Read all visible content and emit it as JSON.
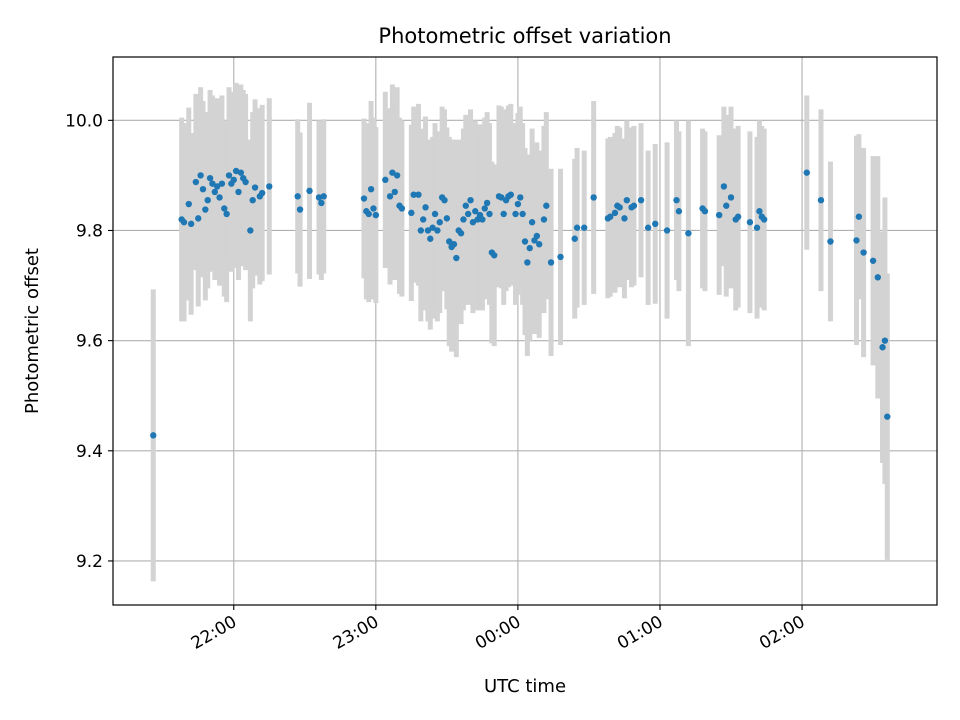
{
  "chart_data": {
    "type": "scatter",
    "title": "Photometric offset variation",
    "xlabel": "UTC time",
    "ylabel": "Photometric offset",
    "xlim": [
      "21:09",
      "02:57"
    ],
    "ylim": [
      9.12,
      10.115
    ],
    "x_ticks": [
      "22:00",
      "23:00",
      "00:00",
      "01:00",
      "02:00"
    ],
    "y_ticks": [
      "9.2",
      "9.4",
      "9.6",
      "9.8",
      "10.0"
    ],
    "grid": true,
    "colors": {
      "point": "#1f77b4",
      "errorbar": "#d3d3d3",
      "grid": "#b0b0b0"
    },
    "series": [
      {
        "points": [
          {
            "t": "21:26",
            "y": 9.428,
            "err": 0.265
          },
          {
            "t": "21:38",
            "y": 9.82,
            "err": 0.185
          },
          {
            "t": "21:39",
            "y": 9.815,
            "err": 0.18
          },
          {
            "t": "21:41",
            "y": 9.848,
            "err": 0.175
          },
          {
            "t": "21:42",
            "y": 9.812,
            "err": 0.165
          },
          {
            "t": "21:44",
            "y": 9.888,
            "err": 0.16
          },
          {
            "t": "21:45",
            "y": 9.822,
            "err": 0.16
          },
          {
            "t": "21:46",
            "y": 9.9,
            "err": 0.16
          },
          {
            "t": "21:47",
            "y": 9.875,
            "err": 0.16
          },
          {
            "t": "21:48",
            "y": 9.838,
            "err": 0.165
          },
          {
            "t": "21:49",
            "y": 9.855,
            "err": 0.16
          },
          {
            "t": "21:50",
            "y": 9.895,
            "err": 0.16
          },
          {
            "t": "21:51",
            "y": 9.885,
            "err": 0.16
          },
          {
            "t": "21:52",
            "y": 9.87,
            "err": 0.16
          },
          {
            "t": "21:53",
            "y": 9.88,
            "err": 0.16
          },
          {
            "t": "21:54",
            "y": 9.86,
            "err": 0.16
          },
          {
            "t": "21:55",
            "y": 9.885,
            "err": 0.16
          },
          {
            "t": "21:56",
            "y": 9.84,
            "err": 0.16
          },
          {
            "t": "21:57",
            "y": 9.83,
            "err": 0.16
          },
          {
            "t": "21:58",
            "y": 9.9,
            "err": 0.16
          },
          {
            "t": "21:59",
            "y": 9.885,
            "err": 0.16
          },
          {
            "t": "22:00",
            "y": 9.892,
            "err": 0.16
          },
          {
            "t": "22:01",
            "y": 9.908,
            "err": 0.16
          },
          {
            "t": "22:02",
            "y": 9.87,
            "err": 0.16
          },
          {
            "t": "22:03",
            "y": 9.905,
            "err": 0.16
          },
          {
            "t": "22:04",
            "y": 9.895,
            "err": 0.16
          },
          {
            "t": "22:05",
            "y": 9.888,
            "err": 0.16
          },
          {
            "t": "22:07",
            "y": 9.8,
            "err": 0.165
          },
          {
            "t": "22:08",
            "y": 9.855,
            "err": 0.16
          },
          {
            "t": "22:09",
            "y": 9.878,
            "err": 0.16
          },
          {
            "t": "22:11",
            "y": 9.862,
            "err": 0.16
          },
          {
            "t": "22:12",
            "y": 9.868,
            "err": 0.16
          },
          {
            "t": "22:15",
            "y": 9.88,
            "err": 0.16
          },
          {
            "t": "22:27",
            "y": 9.862,
            "err": 0.14
          },
          {
            "t": "22:28",
            "y": 9.838,
            "err": 0.14
          },
          {
            "t": "22:32",
            "y": 9.872,
            "err": 0.16
          },
          {
            "t": "22:36",
            "y": 9.86,
            "err": 0.14
          },
          {
            "t": "22:37",
            "y": 9.85,
            "err": 0.14
          },
          {
            "t": "22:38",
            "y": 9.862,
            "err": 0.14
          },
          {
            "t": "22:55",
            "y": 9.858,
            "err": 0.145
          },
          {
            "t": "22:56",
            "y": 9.835,
            "err": 0.16
          },
          {
            "t": "22:57",
            "y": 9.83,
            "err": 0.16
          },
          {
            "t": "22:58",
            "y": 9.875,
            "err": 0.16
          },
          {
            "t": "22:59",
            "y": 9.84,
            "err": 0.165
          },
          {
            "t": "23:00",
            "y": 9.828,
            "err": 0.16
          },
          {
            "t": "23:04",
            "y": 9.892,
            "err": 0.16
          },
          {
            "t": "23:06",
            "y": 9.862,
            "err": 0.16
          },
          {
            "t": "23:07",
            "y": 9.905,
            "err": 0.16
          },
          {
            "t": "23:08",
            "y": 9.87,
            "err": 0.16
          },
          {
            "t": "23:09",
            "y": 9.9,
            "err": 0.16
          },
          {
            "t": "23:10",
            "y": 9.845,
            "err": 0.16
          },
          {
            "t": "23:11",
            "y": 9.84,
            "err": 0.16
          },
          {
            "t": "23:15",
            "y": 9.832,
            "err": 0.16
          },
          {
            "t": "23:16",
            "y": 9.865,
            "err": 0.16
          },
          {
            "t": "23:18",
            "y": 9.865,
            "err": 0.165
          },
          {
            "t": "23:19",
            "y": 9.8,
            "err": 0.165
          },
          {
            "t": "23:20",
            "y": 9.82,
            "err": 0.165
          },
          {
            "t": "23:21",
            "y": 9.842,
            "err": 0.165
          },
          {
            "t": "23:22",
            "y": 9.8,
            "err": 0.165
          },
          {
            "t": "23:23",
            "y": 9.785,
            "err": 0.165
          },
          {
            "t": "23:24",
            "y": 9.805,
            "err": 0.165
          },
          {
            "t": "23:25",
            "y": 9.83,
            "err": 0.165
          },
          {
            "t": "23:26",
            "y": 9.8,
            "err": 0.165
          },
          {
            "t": "23:27",
            "y": 9.815,
            "err": 0.165
          },
          {
            "t": "23:28",
            "y": 9.86,
            "err": 0.165
          },
          {
            "t": "23:29",
            "y": 9.855,
            "err": 0.165
          },
          {
            "t": "23:30",
            "y": 9.822,
            "err": 0.165
          },
          {
            "t": "23:31",
            "y": 9.78,
            "err": 0.19
          },
          {
            "t": "23:32",
            "y": 9.77,
            "err": 0.19
          },
          {
            "t": "23:33",
            "y": 9.775,
            "err": 0.19
          },
          {
            "t": "23:34",
            "y": 9.75,
            "err": 0.18
          },
          {
            "t": "23:35",
            "y": 9.8,
            "err": 0.165
          },
          {
            "t": "23:36",
            "y": 9.795,
            "err": 0.165
          },
          {
            "t": "23:37",
            "y": 9.82,
            "err": 0.165
          },
          {
            "t": "23:38",
            "y": 9.845,
            "err": 0.165
          },
          {
            "t": "23:39",
            "y": 9.83,
            "err": 0.165
          },
          {
            "t": "23:40",
            "y": 9.855,
            "err": 0.165
          },
          {
            "t": "23:41",
            "y": 9.815,
            "err": 0.165
          },
          {
            "t": "23:42",
            "y": 9.835,
            "err": 0.165
          },
          {
            "t": "23:43",
            "y": 9.82,
            "err": 0.165
          },
          {
            "t": "23:44",
            "y": 9.828,
            "err": 0.165
          },
          {
            "t": "23:45",
            "y": 9.82,
            "err": 0.165
          },
          {
            "t": "23:46",
            "y": 9.84,
            "err": 0.165
          },
          {
            "t": "23:47",
            "y": 9.85,
            "err": 0.165
          },
          {
            "t": "23:48",
            "y": 9.83,
            "err": 0.165
          },
          {
            "t": "23:49",
            "y": 9.76,
            "err": 0.165
          },
          {
            "t": "23:50",
            "y": 9.755,
            "err": 0.165
          },
          {
            "t": "23:52",
            "y": 9.862,
            "err": 0.165
          },
          {
            "t": "23:53",
            "y": 9.86,
            "err": 0.165
          },
          {
            "t": "23:54",
            "y": 9.83,
            "err": 0.165
          },
          {
            "t": "23:55",
            "y": 9.855,
            "err": 0.165
          },
          {
            "t": "23:56",
            "y": 9.862,
            "err": 0.165
          },
          {
            "t": "23:57",
            "y": 9.865,
            "err": 0.165
          },
          {
            "t": "23:59",
            "y": 9.83,
            "err": 0.165
          },
          {
            "t": "00:00",
            "y": 9.848,
            "err": 0.165
          },
          {
            "t": "00:01",
            "y": 9.86,
            "err": 0.165
          },
          {
            "t": "00:02",
            "y": 9.83,
            "err": 0.165
          },
          {
            "t": "00:03",
            "y": 9.78,
            "err": 0.17
          },
          {
            "t": "00:04",
            "y": 9.742,
            "err": 0.17
          },
          {
            "t": "00:05",
            "y": 9.768,
            "err": 0.17
          },
          {
            "t": "00:06",
            "y": 9.815,
            "err": 0.17
          },
          {
            "t": "00:07",
            "y": 9.782,
            "err": 0.17
          },
          {
            "t": "00:08",
            "y": 9.79,
            "err": 0.17
          },
          {
            "t": "00:09",
            "y": 9.775,
            "err": 0.17
          },
          {
            "t": "00:11",
            "y": 9.82,
            "err": 0.17
          },
          {
            "t": "00:12",
            "y": 9.845,
            "err": 0.17
          },
          {
            "t": "00:14",
            "y": 9.742,
            "err": 0.17
          },
          {
            "t": "00:18",
            "y": 9.752,
            "err": 0.16
          },
          {
            "t": "00:24",
            "y": 9.785,
            "err": 0.145
          },
          {
            "t": "00:25",
            "y": 9.805,
            "err": 0.145
          },
          {
            "t": "00:28",
            "y": 9.805,
            "err": 0.14
          },
          {
            "t": "00:32",
            "y": 9.86,
            "err": 0.175
          },
          {
            "t": "00:38",
            "y": 9.822,
            "err": 0.145
          },
          {
            "t": "00:39",
            "y": 9.825,
            "err": 0.145
          },
          {
            "t": "00:41",
            "y": 9.832,
            "err": 0.145
          },
          {
            "t": "00:42",
            "y": 9.845,
            "err": 0.145
          },
          {
            "t": "00:43",
            "y": 9.842,
            "err": 0.145
          },
          {
            "t": "00:45",
            "y": 9.822,
            "err": 0.145
          },
          {
            "t": "00:46",
            "y": 9.855,
            "err": 0.145
          },
          {
            "t": "00:48",
            "y": 9.842,
            "err": 0.145
          },
          {
            "t": "00:49",
            "y": 9.845,
            "err": 0.145
          },
          {
            "t": "00:52",
            "y": 9.855,
            "err": 0.14
          },
          {
            "t": "00:55",
            "y": 9.805,
            "err": 0.14
          },
          {
            "t": "00:58",
            "y": 9.812,
            "err": 0.145
          },
          {
            "t": "01:03",
            "y": 9.8,
            "err": 0.16
          },
          {
            "t": "01:07",
            "y": 9.855,
            "err": 0.145
          },
          {
            "t": "01:08",
            "y": 9.835,
            "err": 0.145
          },
          {
            "t": "01:12",
            "y": 9.795,
            "err": 0.205
          },
          {
            "t": "01:18",
            "y": 9.84,
            "err": 0.145
          },
          {
            "t": "01:19",
            "y": 9.835,
            "err": 0.145
          },
          {
            "t": "01:25",
            "y": 9.828,
            "err": 0.145
          },
          {
            "t": "01:27",
            "y": 9.88,
            "err": 0.145
          },
          {
            "t": "01:28",
            "y": 9.845,
            "err": 0.165
          },
          {
            "t": "01:30",
            "y": 9.86,
            "err": 0.165
          },
          {
            "t": "01:32",
            "y": 9.82,
            "err": 0.165
          },
          {
            "t": "01:33",
            "y": 9.825,
            "err": 0.165
          },
          {
            "t": "01:38",
            "y": 9.815,
            "err": 0.165
          },
          {
            "t": "01:41",
            "y": 9.805,
            "err": 0.165
          },
          {
            "t": "01:42",
            "y": 9.835,
            "err": 0.165
          },
          {
            "t": "01:43",
            "y": 9.825,
            "err": 0.165
          },
          {
            "t": "01:44",
            "y": 9.82,
            "err": 0.165
          },
          {
            "t": "02:02",
            "y": 9.905,
            "err": 0.14
          },
          {
            "t": "02:08",
            "y": 9.855,
            "err": 0.165
          },
          {
            "t": "02:12",
            "y": 9.78,
            "err": 0.145
          },
          {
            "t": "02:23",
            "y": 9.782,
            "err": 0.19
          },
          {
            "t": "02:24",
            "y": 9.825,
            "err": 0.15
          },
          {
            "t": "02:26",
            "y": 9.76,
            "err": 0.19
          },
          {
            "t": "02:30",
            "y": 9.745,
            "err": 0.19
          },
          {
            "t": "02:32",
            "y": 9.715,
            "err": 0.22
          },
          {
            "t": "02:34",
            "y": 9.588,
            "err": 0.21
          },
          {
            "t": "02:35",
            "y": 9.6,
            "err": 0.26
          },
          {
            "t": "02:36",
            "y": 9.462,
            "err": 0.26
          }
        ]
      }
    ]
  }
}
